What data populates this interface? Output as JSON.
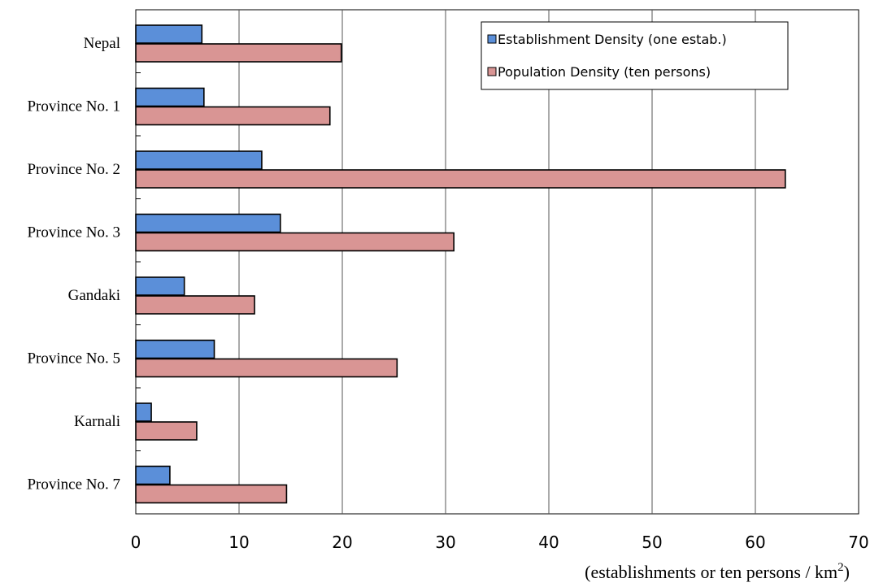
{
  "chart_data": {
    "type": "bar",
    "orientation": "horizontal",
    "categories": [
      "Nepal",
      "Province No. 1",
      "Province No. 2",
      "Province No. 3",
      "Gandaki",
      "Province No. 5",
      "Karnali",
      "Province No. 7"
    ],
    "series": [
      {
        "name": "Establishment Density (one estab.)",
        "color": "#5b8fd9",
        "values": [
          6.4,
          6.6,
          12.2,
          14.0,
          4.7,
          7.6,
          1.5,
          3.3
        ]
      },
      {
        "name": "Population Density (ten persons)",
        "color": "#d99594",
        "values": [
          19.9,
          18.8,
          62.9,
          30.8,
          11.5,
          25.3,
          5.9,
          14.6
        ]
      }
    ],
    "xlim": [
      0,
      70
    ],
    "xticks": [
      "0",
      "10",
      "20",
      "30",
      "40",
      "50",
      "60",
      "70"
    ],
    "xlabel_main": "(establishments or ten persons / km",
    "xlabel_sup": "2",
    "xlabel_end": ")",
    "grid": "vertical",
    "legend_position": "top-right"
  }
}
